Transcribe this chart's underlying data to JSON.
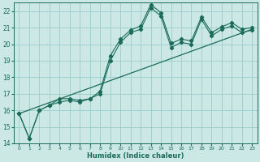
{
  "xlabel": "Humidex (Indice chaleur)",
  "background_color": "#cce8e4",
  "grid_color": "#99cccc",
  "line_color": "#1a6b5a",
  "xlim": [
    -0.5,
    23.5
  ],
  "ylim": [
    14,
    22.5
  ],
  "xticks": [
    0,
    1,
    2,
    3,
    4,
    5,
    6,
    7,
    8,
    9,
    10,
    11,
    12,
    13,
    14,
    15,
    16,
    17,
    18,
    19,
    20,
    21,
    22,
    23
  ],
  "yticks": [
    14,
    15,
    16,
    17,
    18,
    19,
    20,
    21,
    22
  ],
  "series1_x": [
    0,
    1,
    2,
    3,
    4,
    5,
    6,
    7,
    8,
    9,
    10,
    11,
    12,
    13,
    14,
    15,
    16,
    17,
    18,
    19,
    20,
    21,
    22,
    23
  ],
  "series1_y": [
    15.8,
    14.3,
    16.0,
    16.3,
    16.7,
    16.7,
    16.6,
    16.7,
    17.15,
    19.3,
    20.3,
    20.85,
    21.1,
    22.4,
    21.9,
    20.05,
    20.3,
    20.2,
    21.65,
    20.7,
    21.05,
    21.3,
    20.9,
    21.0
  ],
  "series2_x": [
    0,
    1,
    2,
    3,
    4,
    5,
    6,
    7,
    8,
    9,
    10,
    11,
    12,
    13,
    14,
    15,
    16,
    17,
    18,
    19,
    20,
    21,
    22,
    23
  ],
  "series2_y": [
    15.8,
    14.3,
    16.0,
    16.3,
    16.5,
    16.6,
    16.5,
    16.7,
    17.0,
    19.0,
    20.1,
    20.7,
    20.9,
    22.2,
    21.7,
    19.8,
    20.1,
    20.0,
    21.5,
    20.5,
    20.9,
    21.1,
    20.7,
    20.85
  ],
  "series3_x": [
    0,
    23
  ],
  "series3_y": [
    15.8,
    20.9
  ]
}
